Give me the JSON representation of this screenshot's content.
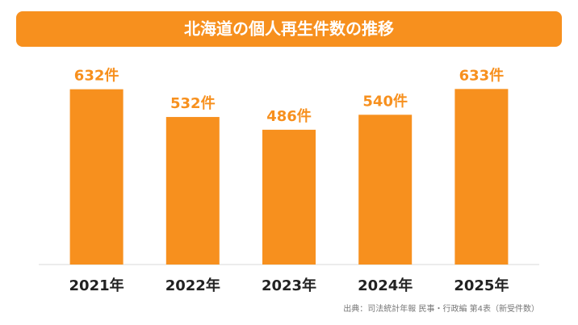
{
  "chart_data": {
    "type": "bar",
    "title": "北海道の個人再生件数の推移",
    "categories": [
      "2021年",
      "2022年",
      "2023年",
      "2024年",
      "2025年"
    ],
    "values": [
      632,
      532,
      486,
      540,
      633
    ],
    "value_labels": [
      "632件",
      "532件",
      "486件",
      "540件",
      "633件"
    ],
    "color": "#f7901e",
    "source": "出典：司法統計年報 民事・行政編 第4表（新受件数）"
  }
}
